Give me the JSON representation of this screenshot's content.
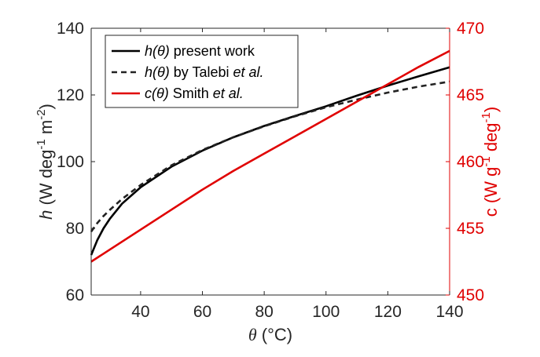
{
  "chart_data": {
    "type": "line",
    "x_axis": {
      "label_symbol": "θ",
      "label_unit": "(°C)",
      "range": [
        24,
        140
      ],
      "ticks": [
        40,
        60,
        80,
        100,
        120,
        140
      ],
      "tick_labels": [
        "40",
        "60",
        "80",
        "100",
        "120",
        "140"
      ]
    },
    "y_axis_left": {
      "label_symbol": "h",
      "label_unit": "(W deg",
      "label_exp1": "-1",
      "label_unit2": " m",
      "label_exp2": "-2",
      "label_close": ")",
      "range": [
        60,
        140
      ],
      "ticks": [
        60,
        80,
        100,
        120,
        140
      ],
      "tick_labels": [
        "60",
        "80",
        "100",
        "120",
        "140"
      ]
    },
    "y_axis_right": {
      "label_symbol": "c",
      "label_unit": " (W g",
      "label_exp1": "-1",
      "label_unit2": " deg",
      "label_exp2": "-1",
      "label_close": ")",
      "range": [
        450,
        470
      ],
      "ticks": [
        450,
        455,
        460,
        465,
        470
      ],
      "tick_labels": [
        "450",
        "455",
        "460",
        "465",
        "470"
      ],
      "color": "#e00000"
    },
    "series": [
      {
        "name": "present work",
        "legend_prefix": "h",
        "legend_arg": "(θ)",
        "legend_text": " present work",
        "legend_italic": "",
        "legend_suffix": "",
        "axis": "left",
        "color": "#000000",
        "dash": "solid",
        "x": [
          24,
          26,
          28,
          30,
          34,
          40,
          50,
          60,
          70,
          80,
          90,
          100,
          110,
          120,
          130,
          140
        ],
        "y": [
          72,
          76.5,
          80,
          82.8,
          87.4,
          92.3,
          98.5,
          103.3,
          107.3,
          110.7,
          113.7,
          116.6,
          119.8,
          122.8,
          125.6,
          128.3
        ]
      },
      {
        "name": "Talebi et al.",
        "legend_prefix": "h",
        "legend_arg": "(θ)",
        "legend_text": " by Talebi ",
        "legend_italic": "et al.",
        "legend_suffix": "",
        "axis": "left",
        "color": "#222222",
        "dash": "dashed",
        "x": [
          24,
          26,
          28,
          30,
          34,
          40,
          50,
          60,
          70,
          80,
          90,
          100,
          110,
          120,
          130,
          140
        ],
        "y": [
          79,
          81.6,
          83.7,
          85.5,
          88.8,
          93.0,
          98.9,
          103.5,
          107.3,
          110.6,
          113.6,
          116.3,
          118.6,
          120.7,
          122.5,
          124.0
        ]
      },
      {
        "name": "Smith et al.",
        "legend_prefix": "c",
        "legend_arg": "(θ)",
        "legend_text": " Smith ",
        "legend_italic": "et al.",
        "legend_suffix": "",
        "axis": "right",
        "color": "#e00000",
        "dash": "solid",
        "x": [
          24,
          30,
          40,
          50,
          60,
          70,
          80,
          90,
          100,
          110,
          120,
          130,
          140
        ],
        "y": [
          452.5,
          453.4,
          454.9,
          456.4,
          457.9,
          459.3,
          460.6,
          461.9,
          463.2,
          464.5,
          465.8,
          467.1,
          468.3
        ]
      }
    ],
    "legend_position": "top-left",
    "grid": false
  }
}
